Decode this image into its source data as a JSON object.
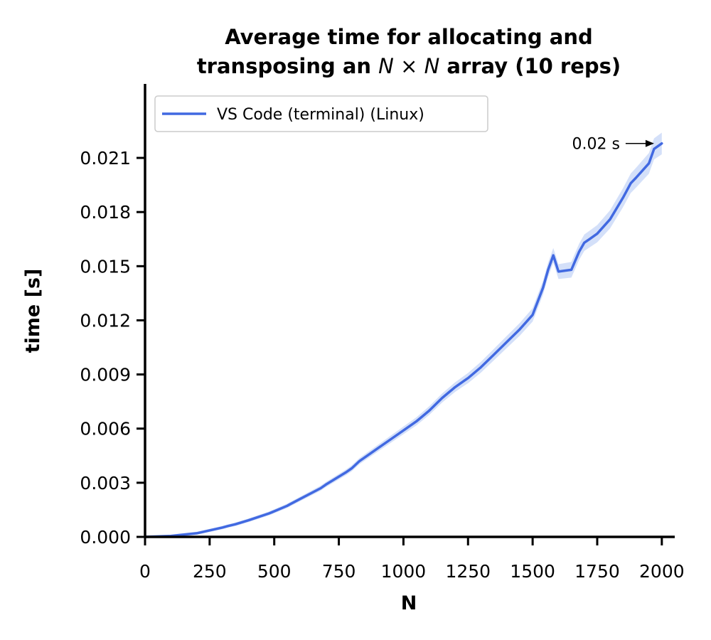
{
  "chart_data": {
    "type": "line",
    "title_line1": "Average time for allocating and",
    "title_line2_pre": "transposing an ",
    "title_line2_math": "N × N",
    "title_line2_post": " array (10 reps)",
    "xlabel": "N",
    "ylabel": "time [s]",
    "xlim": [
      0,
      2050
    ],
    "ylim": [
      0,
      0.0251
    ],
    "xticks": [
      0,
      250,
      500,
      750,
      1000,
      1250,
      1500,
      1750,
      2000
    ],
    "xtick_labels": [
      "0",
      "250",
      "500",
      "750",
      "1000",
      "1250",
      "1500",
      "1750",
      "2000"
    ],
    "yticks": [
      0.0,
      0.003,
      0.006,
      0.009,
      0.012,
      0.015,
      0.018,
      0.021
    ],
    "ytick_labels": [
      "0.000",
      "0.003",
      "0.006",
      "0.009",
      "0.012",
      "0.015",
      "0.018",
      "0.021"
    ],
    "legend_position": "top-left",
    "grid": false,
    "series": [
      {
        "name": "VS Code (terminal) (Linux)",
        "color": "#4169e1",
        "band_color": "#c6d6f7",
        "x": [
          0,
          100,
          200,
          300,
          320,
          350,
          400,
          480,
          500,
          550,
          560,
          600,
          680,
          700,
          780,
          800,
          830,
          860,
          880,
          900,
          950,
          1000,
          1050,
          1100,
          1150,
          1200,
          1240,
          1250,
          1300,
          1350,
          1400,
          1450,
          1500,
          1540,
          1560,
          1580,
          1600,
          1650,
          1680,
          1700,
          1720,
          1750,
          1800,
          1850,
          1880,
          1900,
          1950,
          1970,
          2000
        ],
        "y": [
          0.0,
          5e-05,
          0.0002,
          0.00052,
          0.0006,
          0.0007,
          0.00092,
          0.0013,
          0.00142,
          0.00172,
          0.0018,
          0.0021,
          0.0027,
          0.0029,
          0.0036,
          0.0038,
          0.0042,
          0.0045,
          0.0047,
          0.0049,
          0.0054,
          0.0059,
          0.0064,
          0.007,
          0.0077,
          0.0083,
          0.0087,
          0.0088,
          0.0094,
          0.0101,
          0.0108,
          0.0115,
          0.0123,
          0.0138,
          0.0148,
          0.0156,
          0.0147,
          0.0148,
          0.0158,
          0.0163,
          0.0165,
          0.0168,
          0.0176,
          0.0188,
          0.0196,
          0.0199,
          0.0207,
          0.0215,
          0.0218
        ]
      }
    ],
    "annotation": {
      "text": "0.02 s",
      "x": 1970,
      "y": 0.0218
    }
  }
}
